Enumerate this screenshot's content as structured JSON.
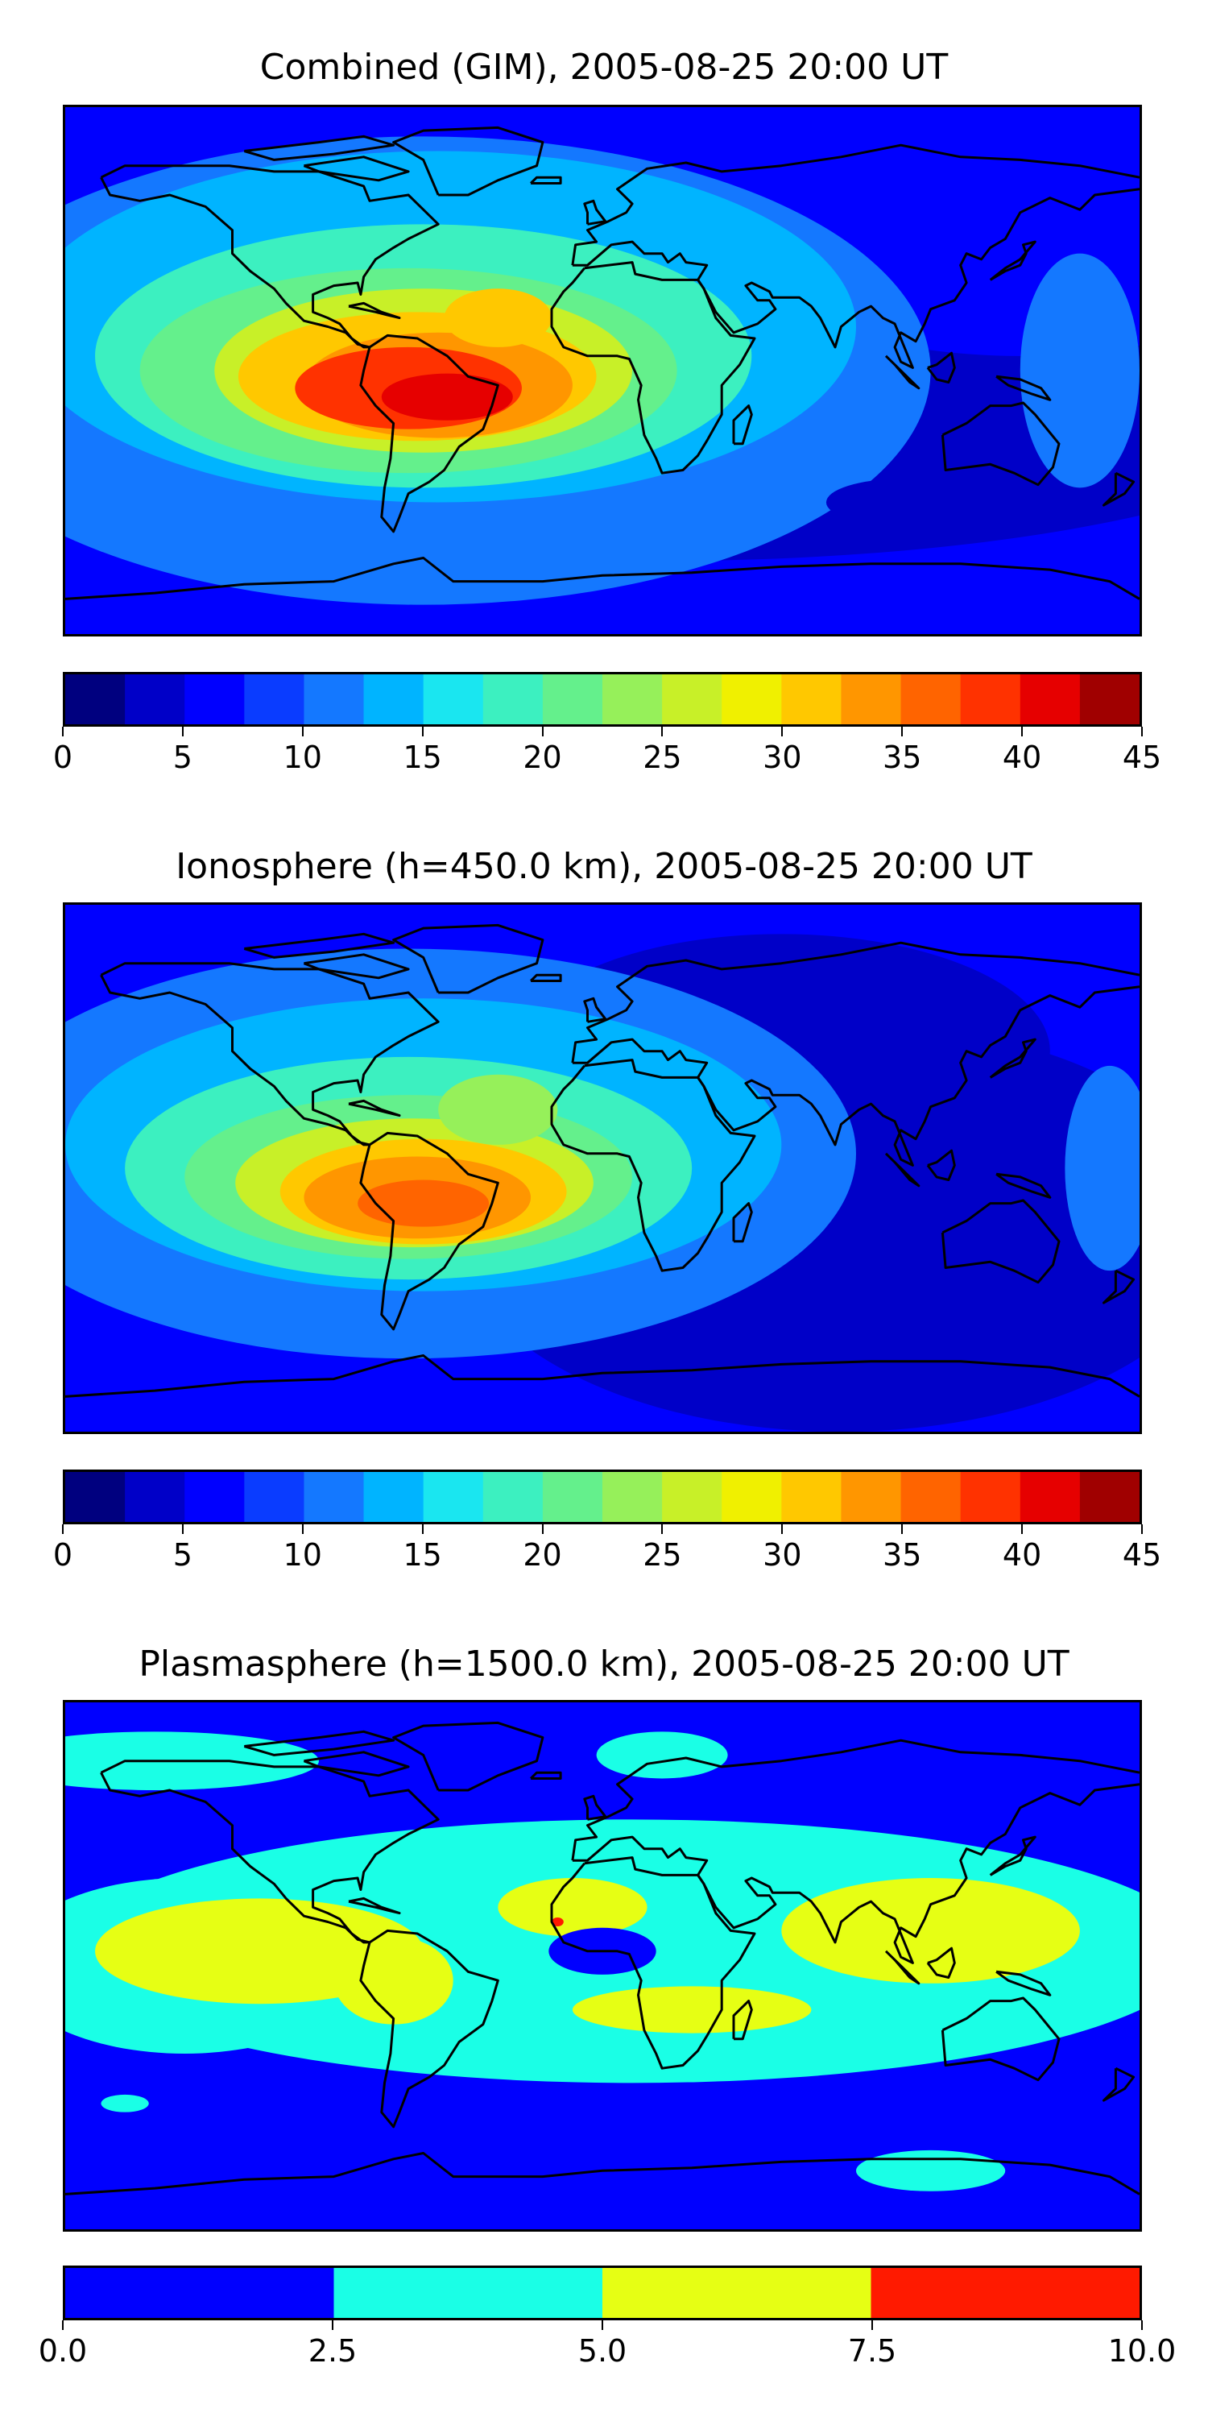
{
  "chart_data": [
    {
      "type": "heatmap",
      "title": "Combined (GIM), 2005-08-25 20:00 UT",
      "xlabel": "",
      "ylabel": "",
      "grid": false,
      "colorbar": {
        "levels": [
          0,
          2.5,
          5,
          7.5,
          10,
          12.5,
          15,
          17.5,
          20,
          22.5,
          25,
          27.5,
          30,
          32.5,
          35,
          37.5,
          40,
          42.5,
          45
        ],
        "colors": [
          "#00007f",
          "#0000c8",
          "#0000ff",
          "#0a3cff",
          "#1478ff",
          "#00b4ff",
          "#1ae6f0",
          "#3cf0c0",
          "#64f08c",
          "#96f05a",
          "#c8f028",
          "#f0f000",
          "#ffc800",
          "#ff9600",
          "#ff6400",
          "#ff3200",
          "#e60000",
          "#a00000"
        ],
        "tick_labels": [
          "0",
          "5",
          "10",
          "15",
          "20",
          "25",
          "30",
          "35",
          "40",
          "45"
        ],
        "ticks": [
          0,
          5,
          10,
          15,
          20,
          25,
          30,
          35,
          40,
          45
        ]
      },
      "features": [
        {
          "lon": -55,
          "lat": -10,
          "value": 45,
          "note": "peak"
        },
        {
          "lon": -80,
          "lat": -8,
          "value": 40
        },
        {
          "lon": -45,
          "lat": 10,
          "value": 30
        },
        {
          "lon": 100,
          "lat": -45,
          "value": 2.5
        }
      ]
    },
    {
      "type": "heatmap",
      "title": "Ionosphere  (h=450.0 km), 2005-08-25 20:00 UT",
      "xlabel": "",
      "ylabel": "",
      "grid": false,
      "colorbar": {
        "levels": [
          0,
          2.5,
          5,
          7.5,
          10,
          12.5,
          15,
          17.5,
          20,
          22.5,
          25,
          27.5,
          30,
          32.5,
          35,
          37.5,
          40,
          42.5,
          45
        ],
        "colors": [
          "#00007f",
          "#0000c8",
          "#0000ff",
          "#0a3cff",
          "#1478ff",
          "#00b4ff",
          "#1ae6f0",
          "#3cf0c0",
          "#64f08c",
          "#96f05a",
          "#c8f028",
          "#f0f000",
          "#ffc800",
          "#ff9600",
          "#ff6400",
          "#ff3200",
          "#e60000",
          "#a00000"
        ],
        "tick_labels": [
          "0",
          "5",
          "10",
          "15",
          "20",
          "25",
          "30",
          "35",
          "40",
          "45"
        ],
        "ticks": [
          0,
          5,
          10,
          15,
          20,
          25,
          30,
          35,
          40,
          45
        ]
      },
      "features": [
        {
          "lon": -60,
          "lat": -10,
          "value": 37.5,
          "note": "peak"
        },
        {
          "lon": -85,
          "lat": -5,
          "value": 35
        },
        {
          "lon": 80,
          "lat": -30,
          "value": 0
        }
      ]
    },
    {
      "type": "heatmap",
      "title": "Plasmasphere (h=1500.0 km), 2005-08-25 20:00 UT",
      "xlabel": "",
      "ylabel": "",
      "grid": false,
      "colorbar": {
        "levels": [
          0,
          2.5,
          5,
          7.5,
          10
        ],
        "colors": [
          "#0000ff",
          "#1affe6",
          "#e6ff14",
          "#ff1a00"
        ],
        "tick_labels": [
          "0.0",
          "2.5",
          "5.0",
          "7.5",
          "10.0"
        ],
        "ticks": [
          0,
          2.5,
          5,
          7.5,
          10
        ]
      },
      "features": [
        {
          "lon": -15,
          "lat": 15,
          "value": 8,
          "note": "small red patch"
        },
        {
          "lon": 110,
          "lat": 10,
          "value": 6
        },
        {
          "lon": -100,
          "lat": 0,
          "value": 6
        },
        {
          "lon": 10,
          "lat": 60,
          "value": 1
        }
      ]
    }
  ],
  "colors": {
    "background": "#ffffff",
    "coastline": "#000000"
  }
}
